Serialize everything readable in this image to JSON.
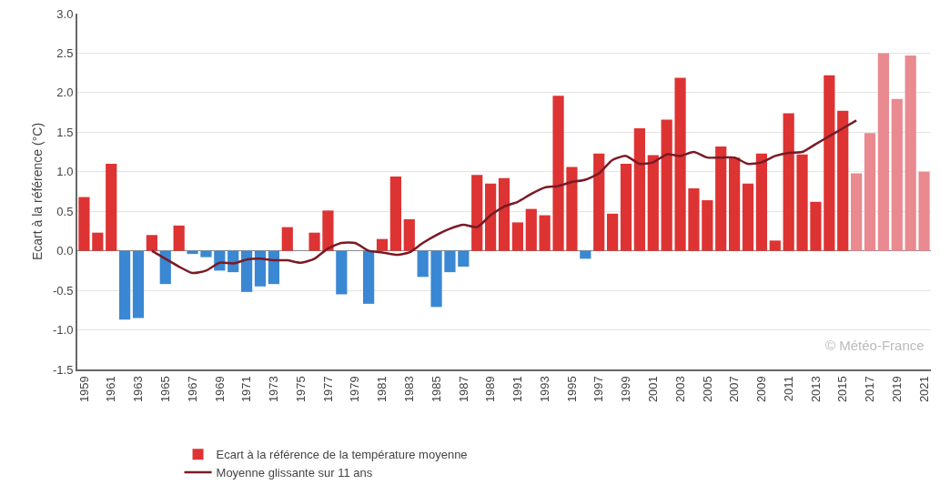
{
  "chart_data": {
    "type": "bar",
    "ylabel": "Ecart à la référence (°C)",
    "categories": [
      "1959",
      null,
      "1961",
      null,
      "1963",
      null,
      "1965",
      null,
      "1967",
      null,
      "1969",
      null,
      "1971",
      null,
      "1973",
      null,
      "1975",
      null,
      "1977",
      null,
      "1979",
      null,
      "1981",
      null,
      "1983",
      null,
      "1985",
      null,
      "1987",
      null,
      "1989",
      null,
      "1991",
      null,
      "1993",
      null,
      "1995",
      null,
      "1997",
      null,
      "1999",
      null,
      "2001",
      null,
      "2003",
      null,
      "2005",
      null,
      "2007",
      null,
      "2009",
      null,
      "2011",
      null,
      "2013",
      null,
      "2015",
      null,
      "2017",
      null,
      "2019",
      null,
      "2021"
    ],
    "series": [
      {
        "name": "Ecart à la référence de la température moyenne",
        "values": [
          0.68,
          0.23,
          1.1,
          -0.87,
          -0.85,
          0.2,
          -0.42,
          0.32,
          -0.04,
          -0.08,
          -0.25,
          -0.27,
          -0.52,
          -0.45,
          -0.42,
          0.3,
          0,
          0.23,
          0.51,
          -0.55,
          0,
          -0.67,
          0.15,
          0.94,
          0.4,
          -0.33,
          -0.71,
          -0.27,
          -0.2,
          0.96,
          0.85,
          0.92,
          0.36,
          0.53,
          0.45,
          1.96,
          1.06,
          -0.1,
          1.23,
          0.47,
          1.1,
          1.55,
          1.21,
          1.66,
          2.19,
          0.79,
          0.64,
          1.32,
          1.18,
          0.85,
          1.23,
          0.13,
          1.74,
          1.22,
          0.62,
          2.22,
          1.77,
          0.98,
          1.49,
          2.5,
          1.92,
          2.47,
          1.0
        ],
        "colors": [
          "#dd3333",
          "#dd3333",
          "#dd3333",
          "#3a88d4",
          "#3a88d4",
          "#dd3333",
          "#3a88d4",
          "#dd3333",
          "#3a88d4",
          "#3a88d4",
          "#3a88d4",
          "#3a88d4",
          "#3a88d4",
          "#3a88d4",
          "#3a88d4",
          "#dd3333",
          "#dd3333",
          "#dd3333",
          "#dd3333",
          "#3a88d4",
          "#dd3333",
          "#3a88d4",
          "#dd3333",
          "#dd3333",
          "#dd3333",
          "#3a88d4",
          "#3a88d4",
          "#3a88d4",
          "#3a88d4",
          "#dd3333",
          "#dd3333",
          "#dd3333",
          "#dd3333",
          "#dd3333",
          "#dd3333",
          "#dd3333",
          "#dd3333",
          "#3a88d4",
          "#dd3333",
          "#dd3333",
          "#dd3333",
          "#dd3333",
          "#dd3333",
          "#dd3333",
          "#dd3333",
          "#dd3333",
          "#dd3333",
          "#dd3333",
          "#dd3333",
          "#dd3333",
          "#dd3333",
          "#dd3333",
          "#dd3333",
          "#dd3333",
          "#dd3333",
          "#dd3333",
          "#dd3333",
          "#e88a90",
          "#e88a90",
          "#e88a90",
          "#e88a90",
          "#e88a90",
          "#e88a90"
        ]
      },
      {
        "type": "line",
        "name": "Moyenne glissante sur 11 ans",
        "color": "#7a1a24",
        "values": [
          null,
          null,
          null,
          null,
          null,
          0.0,
          -0.1,
          -0.2,
          -0.28,
          -0.25,
          -0.15,
          -0.16,
          -0.11,
          -0.1,
          -0.12,
          -0.12,
          -0.15,
          -0.1,
          0.03,
          0.1,
          0.1,
          0.0,
          -0.02,
          -0.05,
          -0.02,
          0.1,
          0.2,
          0.28,
          0.33,
          0.3,
          0.45,
          0.56,
          0.62,
          0.72,
          0.8,
          0.82,
          0.87,
          0.9,
          0.98,
          1.15,
          1.2,
          1.1,
          1.12,
          1.22,
          1.2,
          1.25,
          1.18,
          1.18,
          1.18,
          1.1,
          1.12,
          1.2,
          1.24,
          1.25,
          1.35,
          1.45,
          1.55,
          1.65,
          null,
          null,
          null,
          null,
          null
        ]
      }
    ],
    "ylim": [
      -1.5,
      3
    ],
    "yticks": [
      {
        "value": -1.5,
        "label": "-1.5"
      },
      {
        "value": -1,
        "label": "-1.0"
      },
      {
        "value": -0.5,
        "label": "-0.5"
      },
      {
        "value": 0,
        "label": "0.0"
      },
      {
        "value": 0.5,
        "label": "0.5"
      },
      {
        "value": 1,
        "label": "1.0"
      },
      {
        "value": 1.5,
        "label": "1.5"
      },
      {
        "value": 2,
        "label": "2.0"
      },
      {
        "value": 2.5,
        "label": "2.5"
      },
      {
        "value": 3,
        "label": "3.0"
      }
    ],
    "grid": "y",
    "legend": "bottom",
    "marker": "none",
    "line_style": "solid",
    "annotations": [
      "© Météo-France"
    ]
  }
}
